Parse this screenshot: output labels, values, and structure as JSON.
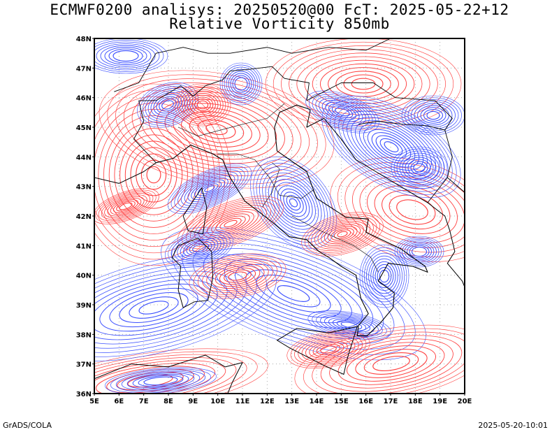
{
  "title_line1": "ECMWF0200 analisys: 20250520@00 FcT: 2025-05-22+12",
  "title_line2": "Relative Vorticity 850mb",
  "footer_left": "GrADS/COLA",
  "footer_right": "2025-05-20-10:01",
  "lat_labels": [
    "48N",
    "47N",
    "46N",
    "45N",
    "44N",
    "43N",
    "42N",
    "41N",
    "40N",
    "39N",
    "38N",
    "37N",
    "36N"
  ],
  "lon_labels": [
    "5E",
    "6E",
    "7E",
    "8E",
    "9E",
    "10E",
    "11E",
    "12E",
    "13E",
    "14E",
    "15E",
    "16E",
    "17E",
    "18E",
    "19E",
    "20E"
  ],
  "colors": {
    "positive": "#ff4040",
    "negative": "#3c50ff",
    "coast": "#000000"
  }
}
